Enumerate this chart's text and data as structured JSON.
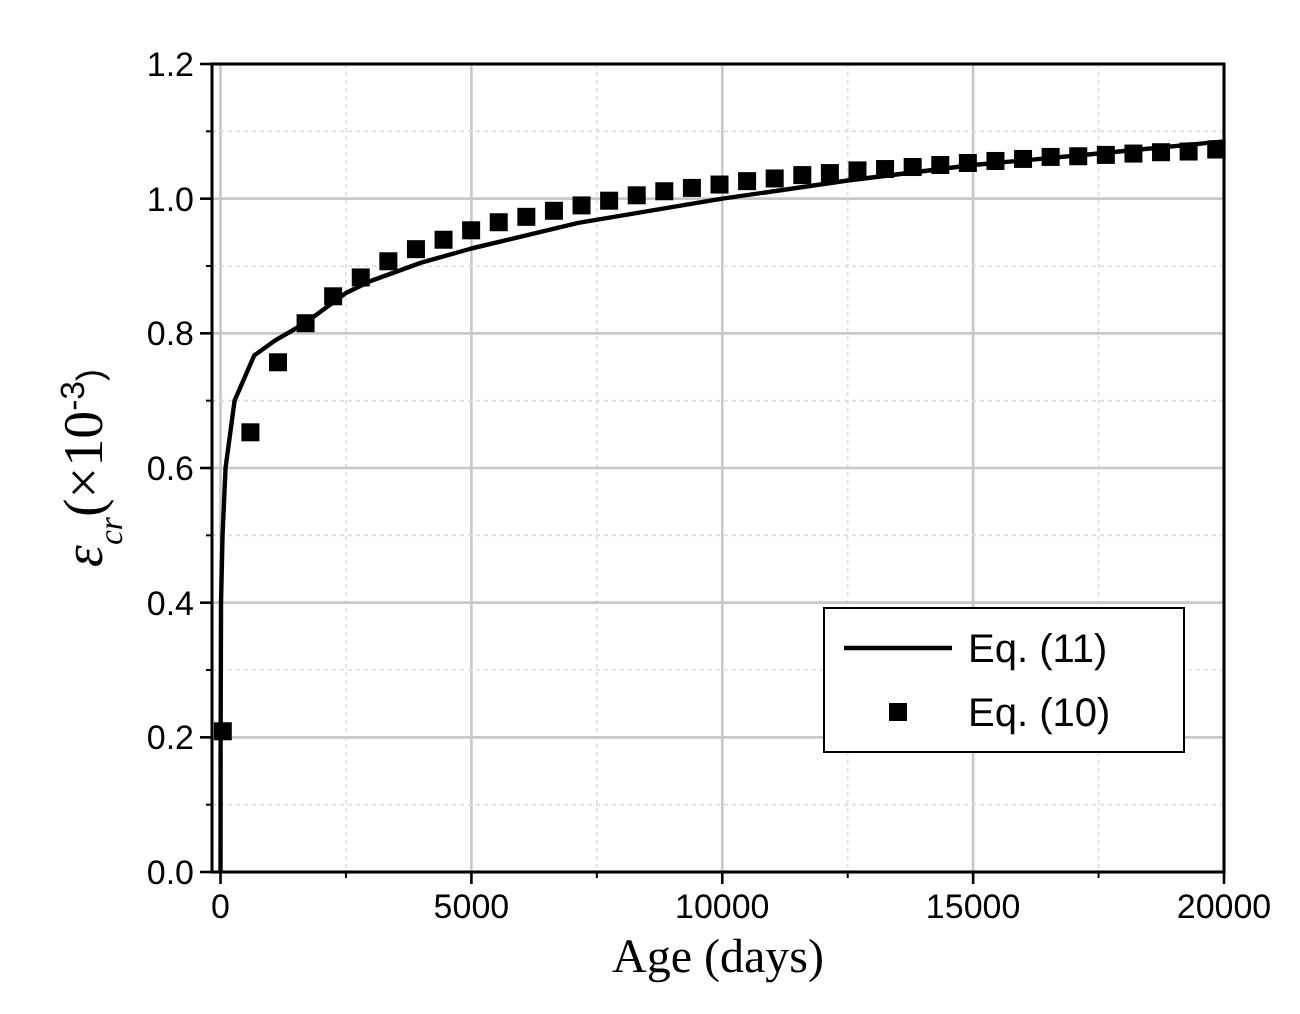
{
  "chart_data": {
    "type": "line",
    "xlabel": "Age (days)",
    "ylabel": "ε$_{cr}$(×10$^{-3}$)",
    "xlim": [
      -170,
      20000
    ],
    "xticks": [
      0,
      5000,
      10000,
      15000,
      20000
    ],
    "ylim": [
      0,
      1.2
    ],
    "yticks": [
      {
        "value": 0,
        "label": "0.0"
      },
      {
        "value": 0.2,
        "label": "0.2"
      },
      {
        "value": 0.4,
        "label": "0.4"
      },
      {
        "value": 0.6,
        "label": "0.6"
      },
      {
        "value": 0.8,
        "label": "0.8"
      },
      {
        "value": 1,
        "label": "1.0"
      },
      {
        "value": 1.2,
        "label": "1.2"
      }
    ],
    "grid": true,
    "legend": "bottom right",
    "series": [
      {
        "name": "Eq. (11)",
        "color": "#000000",
        "marker": "none",
        "line_style": "solid",
        "x": [
          0,
          2,
          10,
          40,
          100,
          280,
          670,
          1100,
          1680,
          2500,
          3000,
          4000,
          5000,
          7130,
          10000,
          12500,
          15000,
          17500,
          20000
        ],
        "values": [
          0,
          0.2,
          0.4,
          0.5,
          0.6,
          0.7,
          0.767,
          0.79,
          0.815,
          0.86,
          0.878,
          0.905,
          0.926,
          0.964,
          1.0,
          1.027,
          1.05,
          1.067,
          1.085
        ]
      },
      {
        "name": "Eq. (10)",
        "type": "scatter",
        "color": "#000000",
        "marker": "square",
        "x": [
          45,
          595,
          1145,
          1695,
          2245,
          2795,
          3345,
          3895,
          4445,
          4995,
          5545,
          6095,
          6645,
          7195,
          7745,
          8295,
          8845,
          9395,
          9945,
          10495,
          11045,
          11595,
          12145,
          12695,
          13245,
          13795,
          14345,
          14895,
          15445,
          15995,
          16545,
          17095,
          17645,
          18195,
          18745,
          19295,
          19845
        ],
        "values": [
          0.209,
          0.653,
          0.757,
          0.815,
          0.855,
          0.883,
          0.907,
          0.925,
          0.939,
          0.953,
          0.965,
          0.973,
          0.982,
          0.99,
          0.997,
          1.005,
          1.011,
          1.016,
          1.021,
          1.026,
          1.03,
          1.035,
          1.038,
          1.042,
          1.044,
          1.047,
          1.05,
          1.053,
          1.056,
          1.059,
          1.062,
          1.063,
          1.065,
          1.067,
          1.069,
          1.07,
          1.073
        ]
      }
    ]
  }
}
